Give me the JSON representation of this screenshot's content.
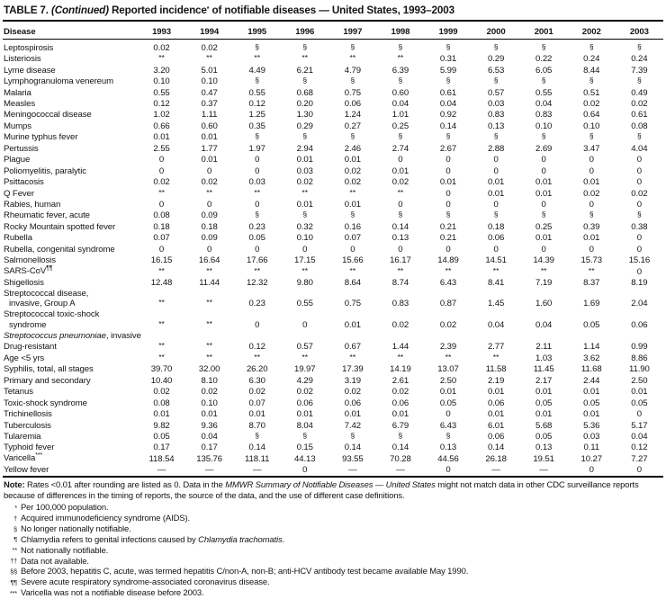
{
  "title": {
    "table_label": "TABLE 7.",
    "continued": " (Continued) ",
    "text_before_sup": "Reported incidence",
    "sup": "*",
    "text_after_sup": " of notifiable diseases — United States, 1993–2003"
  },
  "table": {
    "disease_header": "Disease",
    "year_headers": [
      "1993",
      "1994",
      "1995",
      "1996",
      "1997",
      "1998",
      "1999",
      "2000",
      "2001",
      "2002",
      "2003"
    ],
    "rows": [
      {
        "label": "Leptospirosis",
        "values": [
          "0.02",
          "0.02",
          "§",
          "§",
          "§",
          "§",
          "§",
          "§",
          "§",
          "§",
          "§"
        ]
      },
      {
        "label": "Listeriosis",
        "values": [
          "**",
          "**",
          "**",
          "**",
          "**",
          "**",
          "0.31",
          "0.29",
          "0.22",
          "0.24",
          "0.24"
        ]
      },
      {
        "label": "Lyme disease",
        "values": [
          "3.20",
          "5.01",
          "4.49",
          "6.21",
          "4.79",
          "6.39",
          "5.99",
          "6.53",
          "6.05",
          "8.44",
          "7.39"
        ]
      },
      {
        "label": "Lymphogranuloma venereum",
        "values": [
          "0.10",
          "0.10",
          "§",
          "§",
          "§",
          "§",
          "§",
          "§",
          "§",
          "§",
          "§"
        ]
      },
      {
        "label": "Malaria",
        "values": [
          "0.55",
          "0.47",
          "0.55",
          "0.68",
          "0.75",
          "0.60",
          "0.61",
          "0.57",
          "0.55",
          "0.51",
          "0.49"
        ]
      },
      {
        "label": "Measles",
        "values": [
          "0.12",
          "0.37",
          "0.12",
          "0.20",
          "0.06",
          "0.04",
          "0.04",
          "0.03",
          "0.04",
          "0.02",
          "0.02"
        ]
      },
      {
        "label": "Meningococcal disease",
        "values": [
          "1.02",
          "1.11",
          "1.25",
          "1.30",
          "1.24",
          "1.01",
          "0.92",
          "0.83",
          "0.83",
          "0.64",
          "0.61"
        ]
      },
      {
        "label": "Mumps",
        "values": [
          "0.66",
          "0.60",
          "0.35",
          "0.29",
          "0.27",
          "0.25",
          "0.14",
          "0.13",
          "0.10",
          "0.10",
          "0.08"
        ]
      },
      {
        "label": "Murine typhus fever",
        "values": [
          "0.01",
          "0.01",
          "§",
          "§",
          "§",
          "§",
          "§",
          "§",
          "§",
          "§",
          "§"
        ]
      },
      {
        "label": "Pertussis",
        "values": [
          "2.55",
          "1.77",
          "1.97",
          "2.94",
          "2.46",
          "2.74",
          "2.67",
          "2.88",
          "2.69",
          "3.47",
          "4.04"
        ]
      },
      {
        "label": "Plague",
        "values": [
          "0",
          "0.01",
          "0",
          "0.01",
          "0.01",
          "0",
          "0",
          "0",
          "0",
          "0",
          "0"
        ]
      },
      {
        "label": "Poliomyelitis, paralytic",
        "values": [
          "0",
          "0",
          "0",
          "0.03",
          "0.02",
          "0.01",
          "0",
          "0",
          "0",
          "0",
          "0"
        ]
      },
      {
        "label": "Psittacosis",
        "values": [
          "0.02",
          "0.02",
          "0.03",
          "0.02",
          "0.02",
          "0.02",
          "0.01",
          "0.01",
          "0.01",
          "0.01",
          "0"
        ]
      },
      {
        "label": "Q Fever",
        "values": [
          "**",
          "**",
          "**",
          "**",
          "**",
          "**",
          "0",
          "0.01",
          "0.01",
          "0.02",
          "0.02"
        ]
      },
      {
        "label": "Rabies, human",
        "values": [
          "0",
          "0",
          "0",
          "0.01",
          "0.01",
          "0",
          "0",
          "0",
          "0",
          "0",
          "0"
        ]
      },
      {
        "label": "Rheumatic fever, acute",
        "values": [
          "0.08",
          "0.09",
          "§",
          "§",
          "§",
          "§",
          "§",
          "§",
          "§",
          "§",
          "§"
        ]
      },
      {
        "label": "Rocky Mountain spotted fever",
        "values": [
          "0.18",
          "0.18",
          "0.23",
          "0.32",
          "0.16",
          "0.14",
          "0.21",
          "0.18",
          "0.25",
          "0.39",
          "0.38"
        ]
      },
      {
        "label": "Rubella",
        "values": [
          "0.07",
          "0.09",
          "0.05",
          "0.10",
          "0.07",
          "0.13",
          "0.21",
          "0.06",
          "0.01",
          "0.01",
          "0"
        ]
      },
      {
        "label": "Rubella, congenital syndrome",
        "values": [
          "0",
          "0",
          "0",
          "0",
          "0",
          "0",
          "0",
          "0",
          "0",
          "0",
          "0"
        ]
      },
      {
        "label": "Salmonellosis",
        "values": [
          "16.15",
          "16.64",
          "17.66",
          "17.15",
          "15.66",
          "16.17",
          "14.89",
          "14.51",
          "14.39",
          "15.73",
          "15.16"
        ]
      },
      {
        "label": "SARS-CoV",
        "sup": "¶¶",
        "values": [
          "**",
          "**",
          "**",
          "**",
          "**",
          "**",
          "**",
          "**",
          "**",
          "**",
          "0"
        ]
      },
      {
        "label": "Shigellosis",
        "values": [
          "12.48",
          "11.44",
          "12.32",
          "9.80",
          "8.64",
          "8.74",
          "6.43",
          "8.41",
          "7.19",
          "8.37",
          "8.19"
        ]
      },
      {
        "label": "Streptococcal disease,",
        "label2": "invasive, Group A",
        "values": [
          "**",
          "**",
          "0.23",
          "0.55",
          "0.75",
          "0.83",
          "0.87",
          "1.45",
          "1.60",
          "1.69",
          "2.04"
        ]
      },
      {
        "label": "Streptococcal toxic-shock",
        "label2": "syndrome",
        "values": [
          "**",
          "**",
          "0",
          "0",
          "0.01",
          "0.02",
          "0.02",
          "0.04",
          "0.04",
          "0.05",
          "0.06"
        ]
      },
      {
        "label_italic": "Streptococcus pneumoniae",
        "label_suffix": ", invasive",
        "values": [
          "",
          "",
          "",
          "",
          "",
          "",
          "",
          "",
          "",
          "",
          ""
        ]
      },
      {
        "label": "Drug-resistant",
        "indent": true,
        "values": [
          "**",
          "**",
          "0.12",
          "0.57",
          "0.67",
          "1.44",
          "2.39",
          "2.77",
          "2.11",
          "1.14",
          "0.99"
        ]
      },
      {
        "label": "Age <5 yrs",
        "indent": true,
        "values": [
          "**",
          "**",
          "**",
          "**",
          "**",
          "**",
          "**",
          "**",
          "1.03",
          "3.62",
          "8.86"
        ]
      },
      {
        "label": "Syphilis, total, all stages",
        "values": [
          "39.70",
          "32.00",
          "26.20",
          "19.97",
          "17.39",
          "14.19",
          "13.07",
          "11.58",
          "11.45",
          "11.68",
          "11.90"
        ]
      },
      {
        "label": "Primary and secondary",
        "indent": true,
        "values": [
          "10.40",
          "8.10",
          "6.30",
          "4.29",
          "3.19",
          "2.61",
          "2.50",
          "2.19",
          "2.17",
          "2.44",
          "2.50"
        ]
      },
      {
        "label": "Tetanus",
        "values": [
          "0.02",
          "0.02",
          "0.02",
          "0.02",
          "0.02",
          "0.02",
          "0.01",
          "0.01",
          "0.01",
          "0.01",
          "0.01"
        ]
      },
      {
        "label": "Toxic-shock syndrome",
        "values": [
          "0.08",
          "0.10",
          "0.07",
          "0.06",
          "0.06",
          "0.06",
          "0.05",
          "0.06",
          "0.05",
          "0.05",
          "0.05"
        ]
      },
      {
        "label": "Trichinellosis",
        "values": [
          "0.01",
          "0.01",
          "0.01",
          "0.01",
          "0.01",
          "0.01",
          "0",
          "0.01",
          "0.01",
          "0.01",
          "0"
        ]
      },
      {
        "label": "Tuberculosis",
        "values": [
          "9.82",
          "9.36",
          "8.70",
          "8.04",
          "7.42",
          "6.79",
          "6.43",
          "6.01",
          "5.68",
          "5.36",
          "5.17"
        ]
      },
      {
        "label": "Tularemia",
        "values": [
          "0.05",
          "0.04",
          "§",
          "§",
          "§",
          "§",
          "§",
          "0.06",
          "0.05",
          "0.03",
          "0.04"
        ]
      },
      {
        "label": "Typhoid fever",
        "values": [
          "0.17",
          "0.17",
          "0.14",
          "0.15",
          "0.14",
          "0.14",
          "0.13",
          "0.14",
          "0.13",
          "0.11",
          "0.12"
        ]
      },
      {
        "label": "Varicella",
        "sup": "***",
        "values": [
          "118.54",
          "135.76",
          "118.11",
          "44.13",
          "93.55",
          "70.28",
          "44.56",
          "26.18",
          "19.51",
          "10.27",
          "7.27"
        ]
      },
      {
        "label": "Yellow fever",
        "values": [
          "—",
          "—",
          "—",
          "0",
          "—",
          "—",
          "0",
          "—",
          "—",
          "0",
          "0"
        ]
      }
    ]
  },
  "note": {
    "label": "Note:",
    "pre_italic": " Rates <0.01 after rounding are listed as 0. Data in the ",
    "italic": "MMWR Summary of Notifiable Diseases — United States",
    "post_italic": " might not match data in other CDC surveillance reports because of differences in the timing of reports, the source of the data, and the use of different case definitions."
  },
  "footnotes": [
    {
      "sym": "*",
      "pre": "Per 100,000 population.",
      "italic": "",
      "post": ""
    },
    {
      "sym": "†",
      "pre": "Acquired immunodeficiency syndrome (AIDS).",
      "italic": "",
      "post": ""
    },
    {
      "sym": "§",
      "pre": "No longer nationally notifiable.",
      "italic": "",
      "post": ""
    },
    {
      "sym": "¶",
      "pre": "Chlamydia refers to genital infections caused by ",
      "italic": "Chlamydia trachomatis",
      "post": "."
    },
    {
      "sym": "**",
      "pre": "Not nationally notifiable.",
      "italic": "",
      "post": ""
    },
    {
      "sym": "††",
      "pre": "Data not available.",
      "italic": "",
      "post": ""
    },
    {
      "sym": "§§",
      "pre": "Before 2003, hepatitis C, acute, was termed hepatitis C/non-A, non-B; anti-HCV antibody test became available May 1990.",
      "italic": "",
      "post": ""
    },
    {
      "sym": "¶¶",
      "pre": "Severe acute respiratory syndrome-associated coronavirus disease.",
      "italic": "",
      "post": ""
    },
    {
      "sym": "***",
      "pre": "Varicella was not a notifiable disease before 2003.",
      "italic": "",
      "post": ""
    }
  ]
}
